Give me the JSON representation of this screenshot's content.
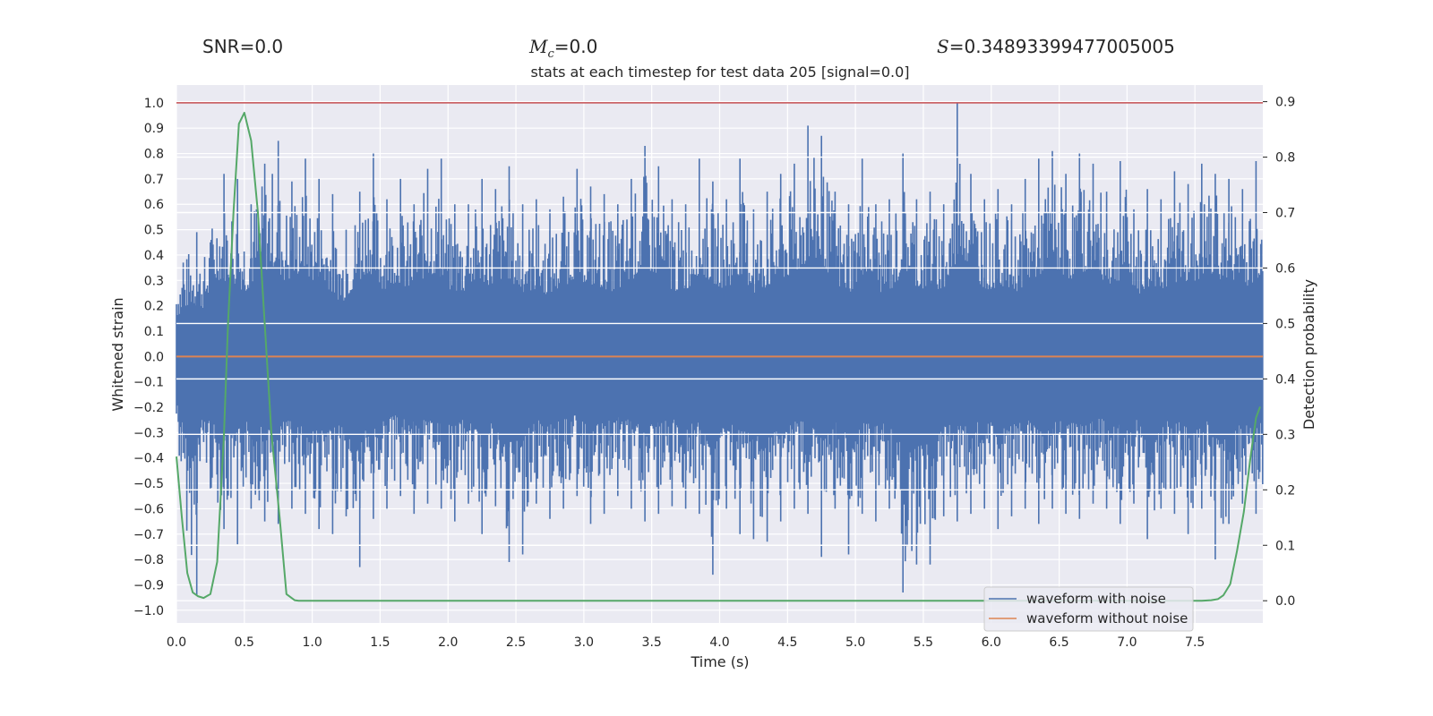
{
  "stats": {
    "snr_label": "SNR",
    "snr_value": "0.0",
    "mc_symbol": "M",
    "mc_subscript": "c",
    "mc_value": "0.0",
    "s_symbol": "S",
    "s_value": "0.34893399477005005"
  },
  "chart_data": {
    "type": "line",
    "title": "stats at each timestep for test data 205 [signal=0.0]",
    "xlabel": "Time (s)",
    "ylabel": "Whitened strain",
    "y2label": "Detection probability",
    "xlim": [
      0.0,
      8.0
    ],
    "ylim": [
      -1.05,
      1.07
    ],
    "y2lim": [
      -0.04,
      0.93
    ],
    "xticks": [
      "0.0",
      "0.5",
      "1.0",
      "1.5",
      "2.0",
      "2.5",
      "3.0",
      "3.5",
      "4.0",
      "4.5",
      "5.0",
      "5.5",
      "6.0",
      "6.5",
      "7.0",
      "7.5"
    ],
    "yticks": [
      "1.0",
      "0.9",
      "0.8",
      "0.7",
      "0.6",
      "0.5",
      "0.4",
      "0.3",
      "0.2",
      "0.1",
      "0.0",
      "−0.1",
      "−0.2",
      "−0.3",
      "−0.4",
      "−0.5",
      "−0.6",
      "−0.7",
      "−0.8",
      "−0.9",
      "−1.0"
    ],
    "y2ticks": [
      "0.9",
      "0.8",
      "0.7",
      "0.6",
      "0.5",
      "0.4",
      "0.3",
      "0.2",
      "0.1",
      "0.0"
    ],
    "legend": [
      "waveform with noise",
      "waveform without noise"
    ],
    "legend_position": "bottom-right",
    "threshold": {
      "y": 1.0,
      "color": "#c44e52"
    },
    "series": [
      {
        "name": "waveform with noise",
        "color": "#4c72b0",
        "axis": "left",
        "envelope_max": [
          0.37,
          0.49,
          0.45,
          0.72,
          0.7,
          0.6,
          0.76,
          0.85,
          0.69,
          0.78,
          0.7,
          0.64,
          0.5,
          0.65,
          0.8,
          0.62,
          0.7,
          0.6,
          0.74,
          0.78,
          0.6,
          0.6,
          0.7,
          0.66,
          0.75,
          0.6,
          0.62,
          0.58,
          0.63,
          0.74,
          0.67,
          0.64,
          0.6,
          0.7,
          0.83,
          0.75,
          0.62,
          0.6,
          0.78,
          0.69,
          0.62,
          0.78,
          0.58,
          0.65,
          0.72,
          0.76,
          0.91,
          0.87,
          0.65,
          0.6,
          0.78,
          0.6,
          0.62,
          0.8,
          0.62,
          0.65,
          0.6,
          1.0,
          0.72,
          0.62,
          0.66,
          0.6,
          0.7,
          0.78,
          0.81,
          0.72,
          0.8,
          0.76,
          0.65,
          0.77,
          0.58,
          0.66,
          0.62,
          0.73,
          0.68,
          0.76,
          0.72,
          0.7,
          0.66,
          0.77
        ],
        "envelope_min": [
          -0.38,
          -0.94,
          -0.52,
          -0.68,
          -0.74,
          -0.6,
          -0.65,
          -0.66,
          -0.6,
          -0.62,
          -0.68,
          -0.7,
          -0.63,
          -0.83,
          -0.64,
          -0.6,
          -0.55,
          -0.62,
          -0.58,
          -0.6,
          -0.65,
          -0.58,
          -0.7,
          -0.59,
          -0.81,
          -0.78,
          -0.58,
          -0.64,
          -0.6,
          -0.55,
          -0.66,
          -0.62,
          -0.55,
          -0.6,
          -0.65,
          -0.62,
          -0.59,
          -0.6,
          -0.62,
          -0.86,
          -0.6,
          -0.7,
          -0.72,
          -0.73,
          -0.65,
          -0.6,
          -0.62,
          -0.79,
          -0.6,
          -0.78,
          -0.62,
          -0.65,
          -0.6,
          -0.93,
          -0.82,
          -0.82,
          -0.63,
          -0.65,
          -0.62,
          -0.6,
          -0.68,
          -0.63,
          -0.6,
          -0.66,
          -0.6,
          -0.62,
          -0.64,
          -0.58,
          -0.6,
          -0.66,
          -0.58,
          -0.72,
          -0.6,
          -0.62,
          -0.7,
          -0.6,
          -0.8,
          -0.66,
          -0.58,
          -0.62
        ]
      },
      {
        "name": "waveform without noise",
        "color": "#dd8452",
        "axis": "left",
        "x": [
          0.0,
          8.0
        ],
        "y": [
          0.0,
          0.0
        ]
      },
      {
        "name": "detection probability",
        "color": "#55a868",
        "axis": "right",
        "x": [
          0.0,
          0.04,
          0.08,
          0.12,
          0.16,
          0.2,
          0.25,
          0.3,
          0.35,
          0.38,
          0.42,
          0.46,
          0.5,
          0.55,
          0.6,
          0.65,
          0.7,
          0.76,
          0.81,
          0.87,
          0.9,
          1.0,
          2.0,
          3.0,
          4.0,
          5.0,
          6.0,
          7.0,
          7.4,
          7.55,
          7.62,
          7.67,
          7.71,
          7.76,
          7.81,
          7.86,
          7.91,
          7.95,
          7.98
        ],
        "y": [
          0.26,
          0.15,
          0.05,
          0.015,
          0.008,
          0.005,
          0.012,
          0.07,
          0.3,
          0.5,
          0.7,
          0.86,
          0.88,
          0.83,
          0.7,
          0.5,
          0.3,
          0.15,
          0.012,
          0.001,
          0.0,
          0.0,
          0.0,
          0.0,
          0.0,
          0.0,
          0.0,
          0.0,
          0.0,
          0.0,
          0.001,
          0.003,
          0.01,
          0.03,
          0.09,
          0.16,
          0.26,
          0.33,
          0.35
        ]
      }
    ]
  }
}
